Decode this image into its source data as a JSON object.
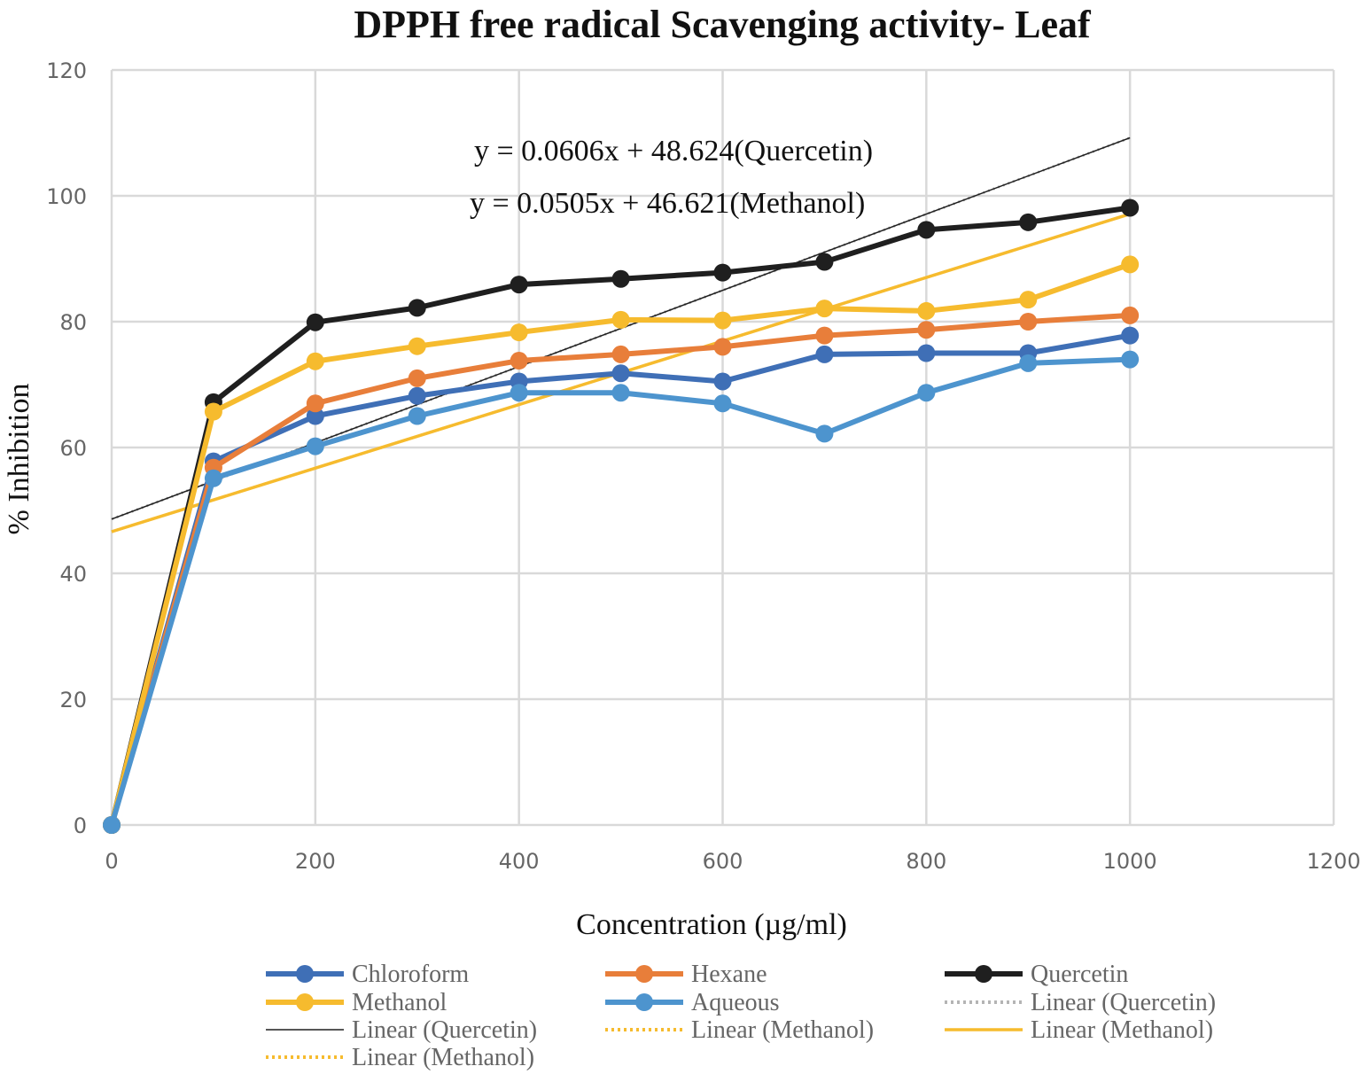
{
  "chart_data": {
    "type": "line",
    "title": "DPPH free radical Scavenging activity- Leaf",
    "xlabel": "Concentration (µg/ml)",
    "ylabel": "% Inhibition",
    "xlim": [
      0,
      1200
    ],
    "ylim": [
      0,
      120
    ],
    "xticks": [
      0,
      200,
      400,
      600,
      800,
      1000,
      1200
    ],
    "yticks": [
      0,
      20,
      40,
      60,
      80,
      100,
      120
    ],
    "grid": true,
    "legend_position": "bottom",
    "x": [
      0,
      100,
      200,
      300,
      400,
      500,
      600,
      700,
      800,
      900,
      1000
    ],
    "series": [
      {
        "name": "Chloroform",
        "color": "#3F6FB6",
        "marker": "circle",
        "values": [
          0,
          57.8,
          65,
          68.2,
          70.5,
          71.8,
          70.5,
          74.8,
          75,
          75,
          77.8
        ]
      },
      {
        "name": "Hexane",
        "color": "#E87E3A",
        "marker": "circle",
        "values": [
          0,
          56.8,
          67,
          71,
          73.8,
          74.8,
          76,
          77.8,
          78.7,
          80,
          81
        ]
      },
      {
        "name": "Quercetin",
        "color": "#1F1F1F",
        "marker": "circle",
        "values": [
          0,
          67.2,
          79.9,
          82.2,
          85.9,
          86.8,
          87.8,
          89.5,
          94.6,
          95.8,
          98.1
        ]
      },
      {
        "name": "Methanol",
        "color": "#F6BB2E",
        "marker": "circle",
        "values": [
          0,
          65.7,
          73.7,
          76.1,
          78.3,
          80.3,
          80.2,
          82.1,
          81.7,
          83.5,
          89.1
        ]
      },
      {
        "name": "Aqueous",
        "color": "#4D94CE",
        "marker": "circle",
        "values": [
          0,
          55.1,
          60.2,
          65,
          68.7,
          68.7,
          67,
          62.2,
          68.7,
          73.4,
          74
        ]
      }
    ],
    "trendlines": [
      {
        "name": "Linear (Quercetin)",
        "style": "dotted",
        "color": "#B4B4B4",
        "slope": 0.0606,
        "intercept": 48.624,
        "x_range": [
          0,
          1000
        ]
      },
      {
        "name": "Linear (Quercetin)",
        "style": "solid-thin",
        "color": "#1F1F1F",
        "slope": 0.0606,
        "intercept": 48.624,
        "x_range": [
          0,
          1000
        ]
      },
      {
        "name": "Linear (Methanol)",
        "style": "dotted",
        "color": "#F6BB2E",
        "slope": 0.0505,
        "intercept": 46.621,
        "x_range": [
          0,
          1000
        ]
      },
      {
        "name": "Linear (Methanol)",
        "style": "solid",
        "color": "#F6BB2E",
        "slope": 0.0505,
        "intercept": 46.621,
        "x_range": [
          0,
          1000
        ]
      },
      {
        "name": "Linear (Methanol)",
        "style": "dotted",
        "color": "#F6BB2E",
        "slope": 0.0505,
        "intercept": 46.621,
        "x_range": [
          0,
          1000
        ]
      }
    ],
    "annotations": [
      "y = 0.0606x + 48.624(Quercetin)",
      "y = 0.0505x + 46.621(Methanol)"
    ],
    "legend": [
      {
        "label": "Chloroform",
        "color": "#3F6FB6",
        "kind": "line-marker"
      },
      {
        "label": "Hexane",
        "color": "#E87E3A",
        "kind": "line-marker"
      },
      {
        "label": "Quercetin",
        "color": "#1F1F1F",
        "kind": "line-marker"
      },
      {
        "label": "Methanol",
        "color": "#F6BB2E",
        "kind": "line-marker"
      },
      {
        "label": "Aqueous",
        "color": "#4D94CE",
        "kind": "line-marker"
      },
      {
        "label": "Linear (Quercetin)",
        "color": "#B4B4B4",
        "kind": "dotted"
      },
      {
        "label": "Linear (Quercetin)",
        "color": "#1F1F1F",
        "kind": "thin"
      },
      {
        "label": "Linear (Methanol)",
        "color": "#F6BB2E",
        "kind": "dotted"
      },
      {
        "label": "Linear (Methanol)",
        "color": "#F6BB2E",
        "kind": "solid"
      },
      {
        "label": "Linear (Methanol)",
        "color": "#F6BB2E",
        "kind": "dotted"
      }
    ]
  }
}
